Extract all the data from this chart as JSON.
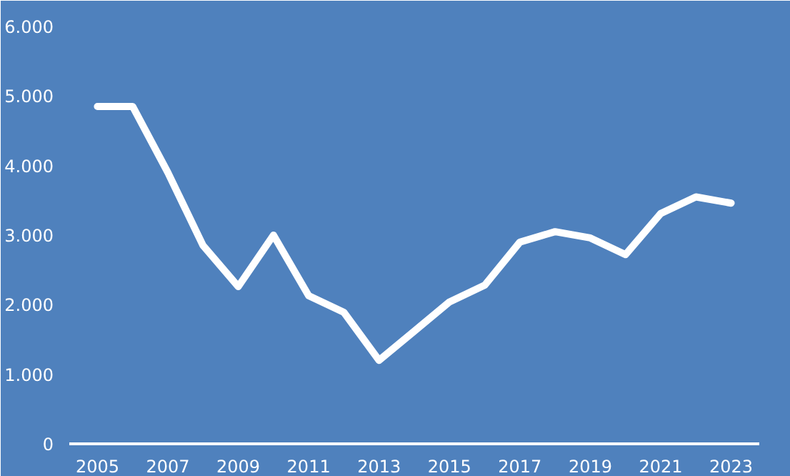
{
  "chart_data": {
    "type": "line",
    "x": [
      2005,
      2006,
      2007,
      2008,
      2009,
      2010,
      2011,
      2012,
      2013,
      2014,
      2015,
      2016,
      2017,
      2018,
      2019,
      2020,
      2021,
      2022,
      2023
    ],
    "series": [
      {
        "color": "#ffffff",
        "values": [
          4850,
          4850,
          3900,
          2850,
          2260,
          3000,
          2130,
          1890,
          1200,
          1620,
          2040,
          2280,
          2900,
          3050,
          2960,
          2720,
          3310,
          3550,
          3460
        ]
      }
    ],
    "xlim": [
      2004.2,
      2023.8
    ],
    "xticks": [
      2005,
      2007,
      2009,
      2011,
      2013,
      2015,
      2017,
      2019,
      2021,
      2023
    ],
    "ylim": [
      0,
      6000
    ],
    "yticks": [
      0,
      {
        "value": 1000,
        "label": "1.000"
      },
      {
        "value": 2000,
        "label": "2.000"
      },
      {
        "value": 3000,
        "label": "3.000"
      },
      {
        "value": 4000,
        "label": "4.000"
      },
      {
        "value": 5000,
        "label": "5.000"
      },
      {
        "value": 6000,
        "label": "6.000"
      }
    ],
    "marker": "none",
    "line_style": "solid"
  }
}
